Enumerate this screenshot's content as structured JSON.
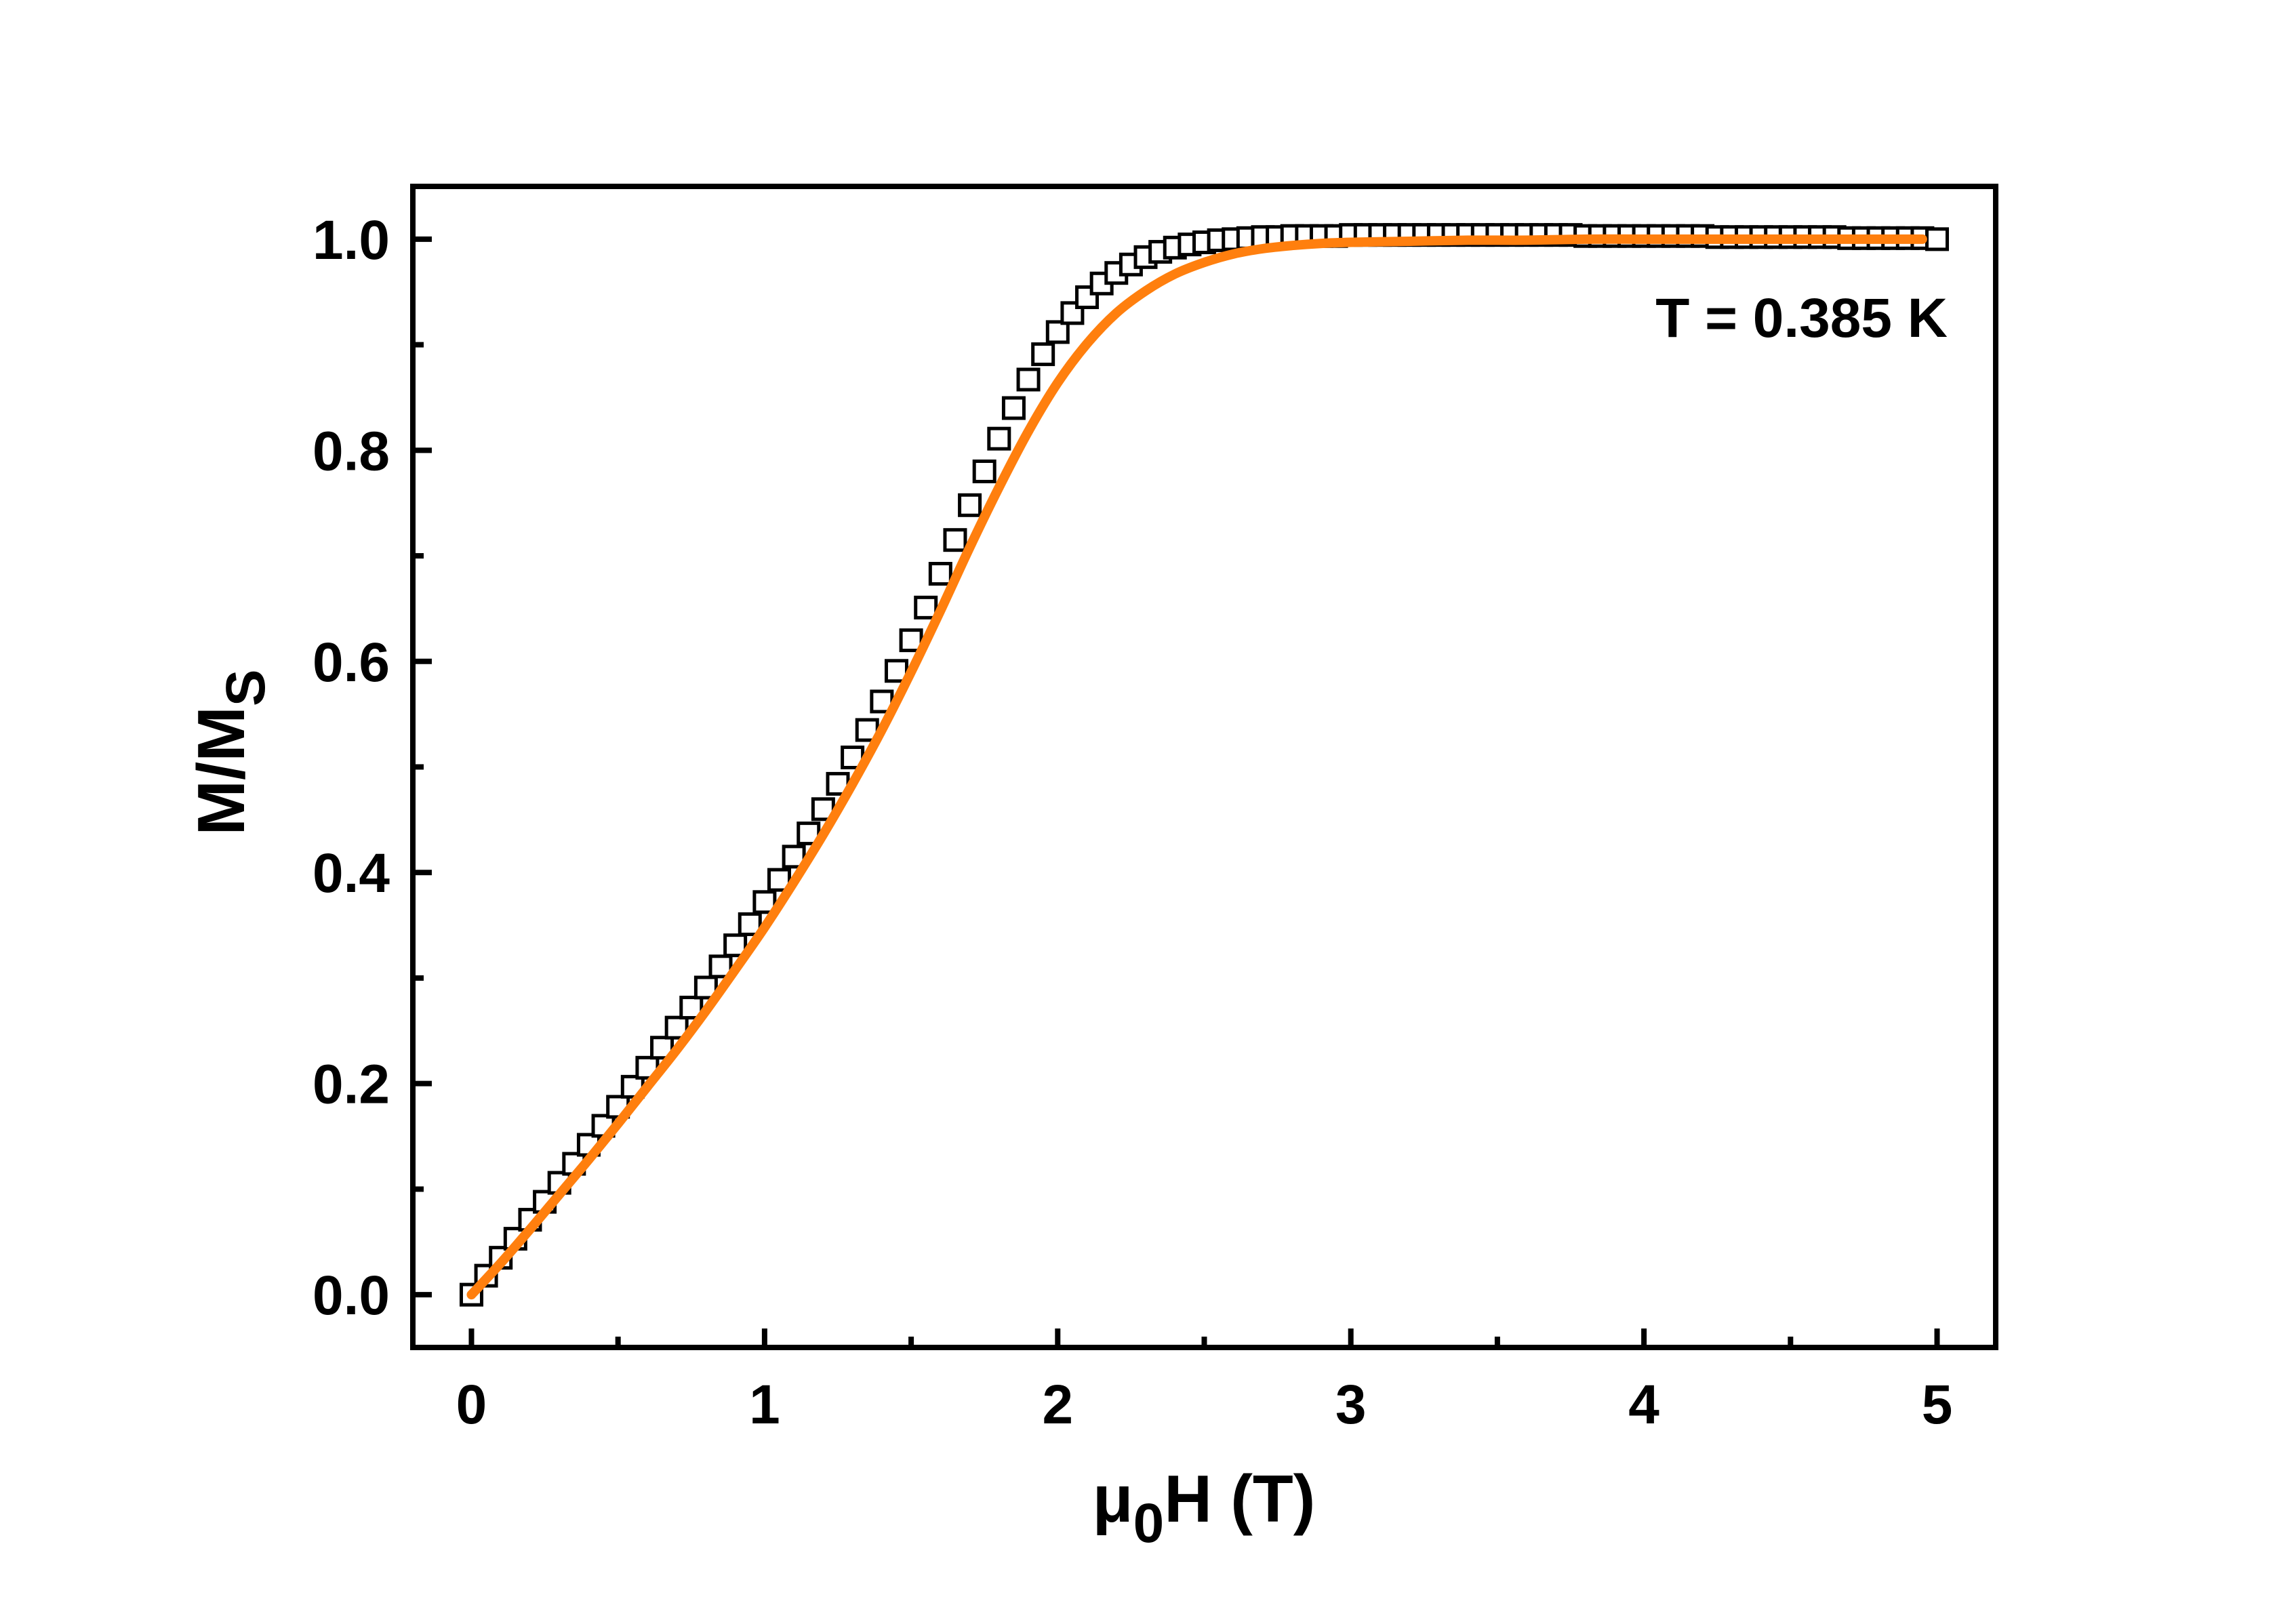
{
  "chart_data": {
    "type": "scatter",
    "title": "",
    "xlabel": {
      "main": "μ",
      "sub": "0",
      "rest": "H (T)"
    },
    "ylabel": {
      "main": "M/M",
      "sub": "S"
    },
    "annotation": "T = 0.385 K",
    "xlim": [
      -0.2,
      5.2
    ],
    "ylim": [
      -0.05,
      1.05
    ],
    "x_ticks": [
      0,
      1,
      2,
      3,
      4,
      5
    ],
    "x_tick_labels": [
      "0",
      "1",
      "2",
      "3",
      "4",
      "5"
    ],
    "x_minor_ticks": [
      0.5,
      1.5,
      2.5,
      3.5,
      4.5
    ],
    "y_ticks": [
      0.0,
      0.2,
      0.4,
      0.6,
      0.8,
      1.0
    ],
    "y_tick_labels": [
      "0.0",
      "0.2",
      "0.4",
      "0.6",
      "0.8",
      "1.0"
    ],
    "y_minor_ticks": [
      0.1,
      0.3,
      0.5,
      0.7,
      0.9
    ],
    "grid": false,
    "legend": "none",
    "series": [
      {
        "kind": "markers",
        "marker": "open-square",
        "color": "#000000",
        "x": [
          0.0,
          0.05,
          0.1,
          0.15,
          0.2,
          0.25,
          0.3,
          0.35,
          0.4,
          0.45,
          0.5,
          0.55,
          0.6,
          0.65,
          0.7,
          0.75,
          0.8,
          0.85,
          0.9,
          0.95,
          1.0,
          1.05,
          1.1,
          1.15,
          1.2,
          1.25,
          1.3,
          1.35,
          1.4,
          1.45,
          1.5,
          1.55,
          1.6,
          1.65,
          1.7,
          1.75,
          1.8,
          1.85,
          1.9,
          1.95,
          2.0,
          2.05,
          2.1,
          2.15,
          2.2,
          2.25,
          2.3,
          2.35,
          2.4,
          2.45,
          2.5,
          2.55,
          2.6,
          2.65,
          2.7,
          2.75,
          2.8,
          2.85,
          2.9,
          2.95,
          3.0,
          3.05,
          3.1,
          3.15,
          3.2,
          3.25,
          3.3,
          3.35,
          3.4,
          3.45,
          3.5,
          3.55,
          3.6,
          3.65,
          3.7,
          3.75,
          3.8,
          3.85,
          3.9,
          3.95,
          4.0,
          4.05,
          4.1,
          4.15,
          4.2,
          4.25,
          4.3,
          4.35,
          4.4,
          4.45,
          4.5,
          4.55,
          4.6,
          4.65,
          4.7,
          4.75,
          4.8,
          4.85,
          4.9,
          4.95,
          5.0
        ],
        "y": [
          0.0,
          0.018,
          0.035,
          0.053,
          0.071,
          0.088,
          0.106,
          0.124,
          0.142,
          0.16,
          0.178,
          0.197,
          0.215,
          0.234,
          0.253,
          0.272,
          0.291,
          0.311,
          0.331,
          0.351,
          0.372,
          0.393,
          0.415,
          0.437,
          0.46,
          0.484,
          0.509,
          0.535,
          0.562,
          0.591,
          0.62,
          0.651,
          0.683,
          0.715,
          0.748,
          0.78,
          0.811,
          0.84,
          0.867,
          0.891,
          0.912,
          0.93,
          0.945,
          0.958,
          0.968,
          0.976,
          0.983,
          0.988,
          0.992,
          0.995,
          0.997,
          0.999,
          1.0,
          1.001,
          1.002,
          1.002,
          1.003,
          1.003,
          1.003,
          1.003,
          1.004,
          1.004,
          1.004,
          1.004,
          1.004,
          1.004,
          1.004,
          1.004,
          1.004,
          1.004,
          1.004,
          1.004,
          1.004,
          1.004,
          1.004,
          1.004,
          1.003,
          1.003,
          1.003,
          1.003,
          1.003,
          1.003,
          1.003,
          1.003,
          1.003,
          1.002,
          1.002,
          1.002,
          1.002,
          1.002,
          1.002,
          1.002,
          1.002,
          1.002,
          1.001,
          1.001,
          1.001,
          1.001,
          1.001,
          1.001,
          1.0
        ]
      },
      {
        "kind": "line",
        "color": "#ff7f0e",
        "x": [
          0.0,
          0.1,
          0.2,
          0.3,
          0.4,
          0.5,
          0.6,
          0.7,
          0.8,
          0.9,
          1.0,
          1.1,
          1.2,
          1.3,
          1.4,
          1.5,
          1.6,
          1.7,
          1.8,
          1.9,
          2.0,
          2.1,
          2.2,
          2.3,
          2.4,
          2.5,
          2.6,
          2.7,
          2.8,
          2.9,
          3.0,
          3.2,
          3.4,
          3.6,
          3.8,
          4.0,
          4.2,
          4.4,
          4.6,
          4.8,
          4.95
        ],
        "y": [
          0.0,
          0.03,
          0.062,
          0.095,
          0.128,
          0.162,
          0.197,
          0.232,
          0.269,
          0.308,
          0.348,
          0.391,
          0.436,
          0.484,
          0.535,
          0.59,
          0.648,
          0.708,
          0.765,
          0.818,
          0.864,
          0.901,
          0.93,
          0.951,
          0.967,
          0.978,
          0.986,
          0.991,
          0.994,
          0.996,
          0.997,
          0.998,
          0.999,
          0.999,
          1.0,
          1.0,
          1.0,
          1.0,
          1.0,
          1.0,
          1.0
        ]
      }
    ]
  }
}
